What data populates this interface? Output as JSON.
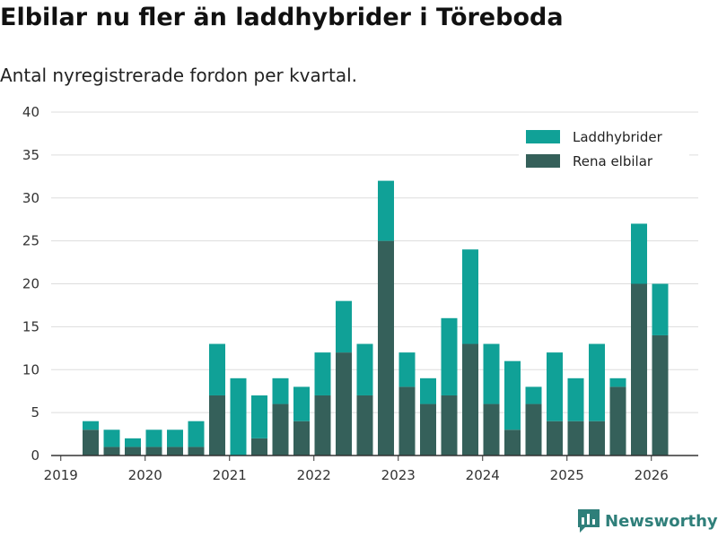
{
  "title": "Elbilar nu fler än laddhybrider i Töreboda",
  "subtitle": "Antal nyregistrerade fordon per kvartal.",
  "logo_text": "Newsworthy",
  "chart_data": {
    "type": "bar",
    "stacked": true,
    "title": "Elbilar nu fler än laddhybrider i Töreboda",
    "subtitle": "Antal nyregistrerade fordon per kvartal.",
    "xlabel": "",
    "ylabel": "",
    "ylim": [
      0,
      40
    ],
    "yticks": [
      0,
      5,
      10,
      15,
      20,
      25,
      30,
      35,
      40
    ],
    "grid": true,
    "legend_position": "top-right",
    "xtick_labels": [
      "2019",
      "2020",
      "2021",
      "2022",
      "2023",
      "2024",
      "2025",
      "2026"
    ],
    "categories": [
      "2019 Q2",
      "2019 Q3",
      "2019 Q4",
      "2020 Q1",
      "2020 Q2",
      "2020 Q3",
      "2020 Q4",
      "2021 Q1",
      "2021 Q2",
      "2021 Q3",
      "2021 Q4",
      "2022 Q1",
      "2022 Q2",
      "2022 Q3",
      "2022 Q4",
      "2023 Q1",
      "2023 Q2",
      "2023 Q3",
      "2023 Q4",
      "2024 Q1",
      "2024 Q2",
      "2024 Q3",
      "2024 Q4",
      "2025 Q1",
      "2025 Q2",
      "2025 Q3",
      "2025 Q4",
      "2026 Q1"
    ],
    "series": [
      {
        "name": "Rena elbilar",
        "color": "#35605a",
        "values": [
          3,
          1,
          1,
          1,
          1,
          1,
          7,
          0,
          2,
          6,
          4,
          7,
          12,
          7,
          25,
          8,
          6,
          7,
          13,
          6,
          3,
          6,
          4,
          4,
          4,
          8,
          20,
          14
        ]
      },
      {
        "name": "Laddhybrider",
        "color": "#10a197",
        "values": [
          1,
          2,
          1,
          2,
          2,
          3,
          6,
          9,
          5,
          3,
          4,
          5,
          6,
          6,
          7,
          4,
          3,
          9,
          11,
          7,
          8,
          2,
          8,
          5,
          9,
          1,
          7,
          6
        ]
      }
    ],
    "legend_order": [
      "Laddhybrider",
      "Rena elbilar"
    ]
  }
}
